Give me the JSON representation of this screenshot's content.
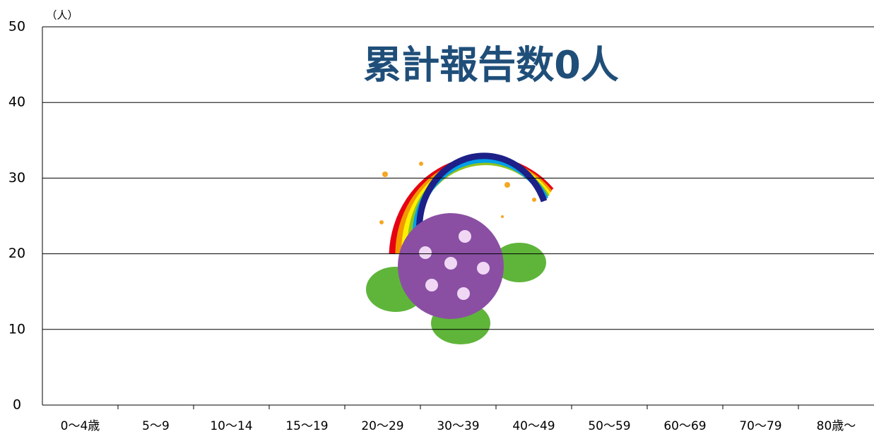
{
  "chart_data": {
    "type": "bar",
    "annotation": "累計報告数0人",
    "y_unit_label": "（人）",
    "categories": [
      "0～4歳",
      "5～9",
      "10～14",
      "15～19",
      "20～29",
      "30～39",
      "40～49",
      "50～59",
      "60～69",
      "70～79",
      "80歳～"
    ],
    "values": [
      0,
      0,
      0,
      0,
      0,
      0,
      0,
      0,
      0,
      0,
      0
    ],
    "color": "#4472c4",
    "ylim": [
      0,
      50
    ],
    "yticks": [
      0,
      10,
      20,
      30,
      40,
      50
    ],
    "grid": true
  }
}
